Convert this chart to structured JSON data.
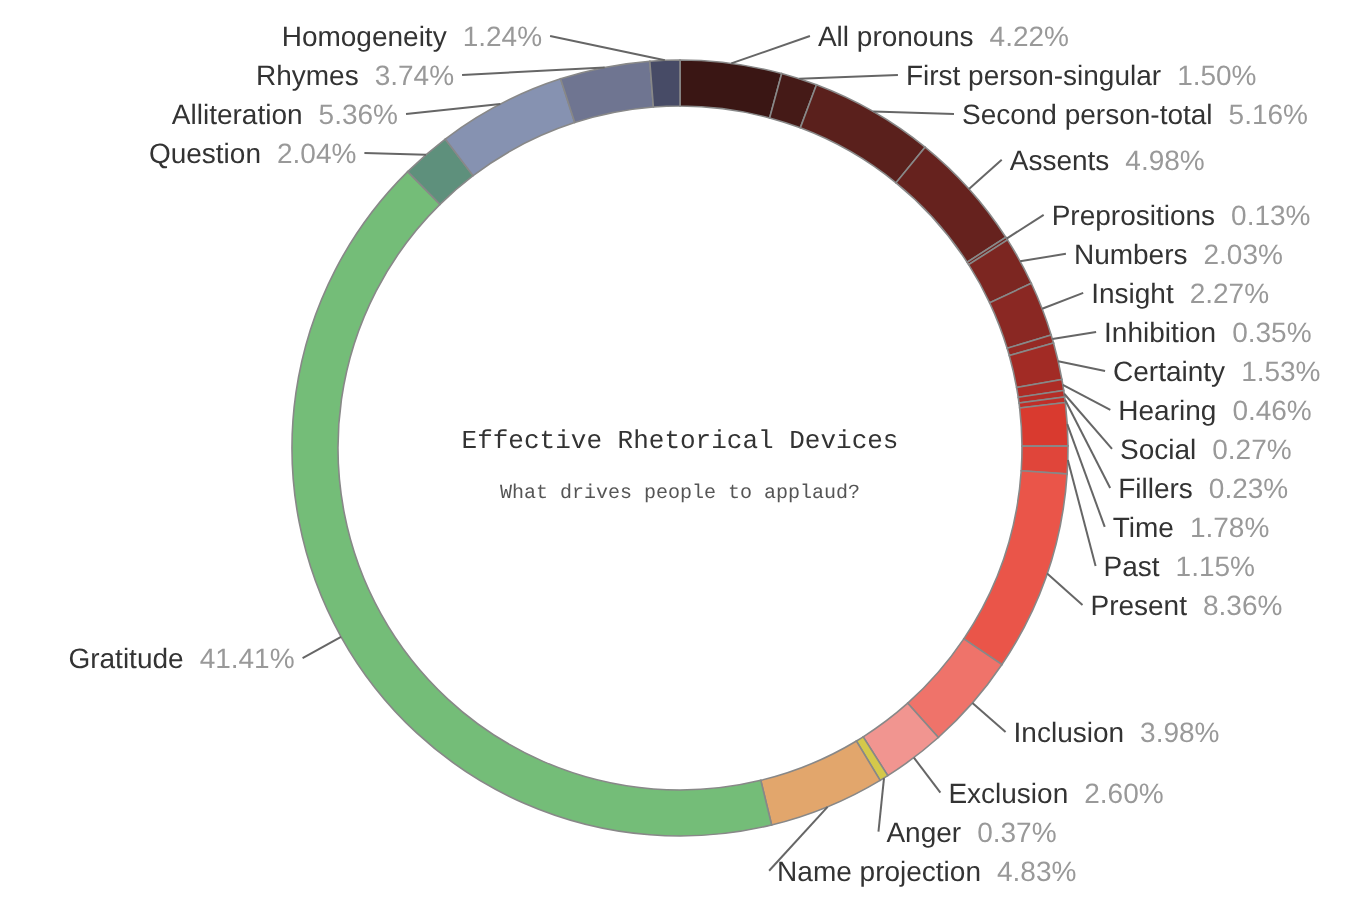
{
  "chart_data": {
    "type": "donut",
    "title": "Effective Rhetorical Devices",
    "subtitle": "What drives people to applaud?",
    "categories": [
      "All pronouns",
      "First person-singular",
      "Second person-total",
      "Assents",
      "Preprositions",
      "Numbers",
      "Insight",
      "Inhibition",
      "Certainty",
      "Hearing",
      "Social",
      "Fillers",
      "Time",
      "Past",
      "Present",
      "Inclusion",
      "Exclusion",
      "Anger",
      "Name projection",
      "Gratitude",
      "Question",
      "Alliteration",
      "Rhymes",
      "Homogeneity"
    ],
    "values": [
      4.22,
      1.5,
      5.16,
      4.98,
      0.13,
      2.03,
      2.27,
      0.35,
      1.53,
      0.46,
      0.27,
      0.23,
      1.78,
      1.15,
      8.36,
      3.98,
      2.6,
      0.37,
      4.83,
      41.41,
      2.04,
      5.36,
      3.74,
      1.24
    ],
    "value_labels": [
      "4.22%",
      "1.50%",
      "5.16%",
      "4.98%",
      "0.13%",
      "2.03%",
      "2.27%",
      "0.35%",
      "1.53%",
      "0.46%",
      "0.27%",
      "0.23%",
      "1.78%",
      "1.15%",
      "8.36%",
      "3.98%",
      "2.60%",
      "0.37%",
      "4.83%",
      "41.41%",
      "2.04%",
      "5.36%",
      "3.74%",
      "1.24%"
    ],
    "colors": [
      "#3a1614",
      "#451a17",
      "#5a201c",
      "#66221e",
      "#6e2420",
      "#7c2621",
      "#8a2823",
      "#962a24",
      "#a22b25",
      "#ad2c26",
      "#b52d27",
      "#c02e28",
      "#d93a2f",
      "#e0453a",
      "#ea5549",
      "#ef736a",
      "#f19590",
      "#d4c84a",
      "#e2a66c",
      "#74bd78",
      "#5e907c",
      "#8692b1",
      "#6f7591",
      "#474b66"
    ]
  }
}
